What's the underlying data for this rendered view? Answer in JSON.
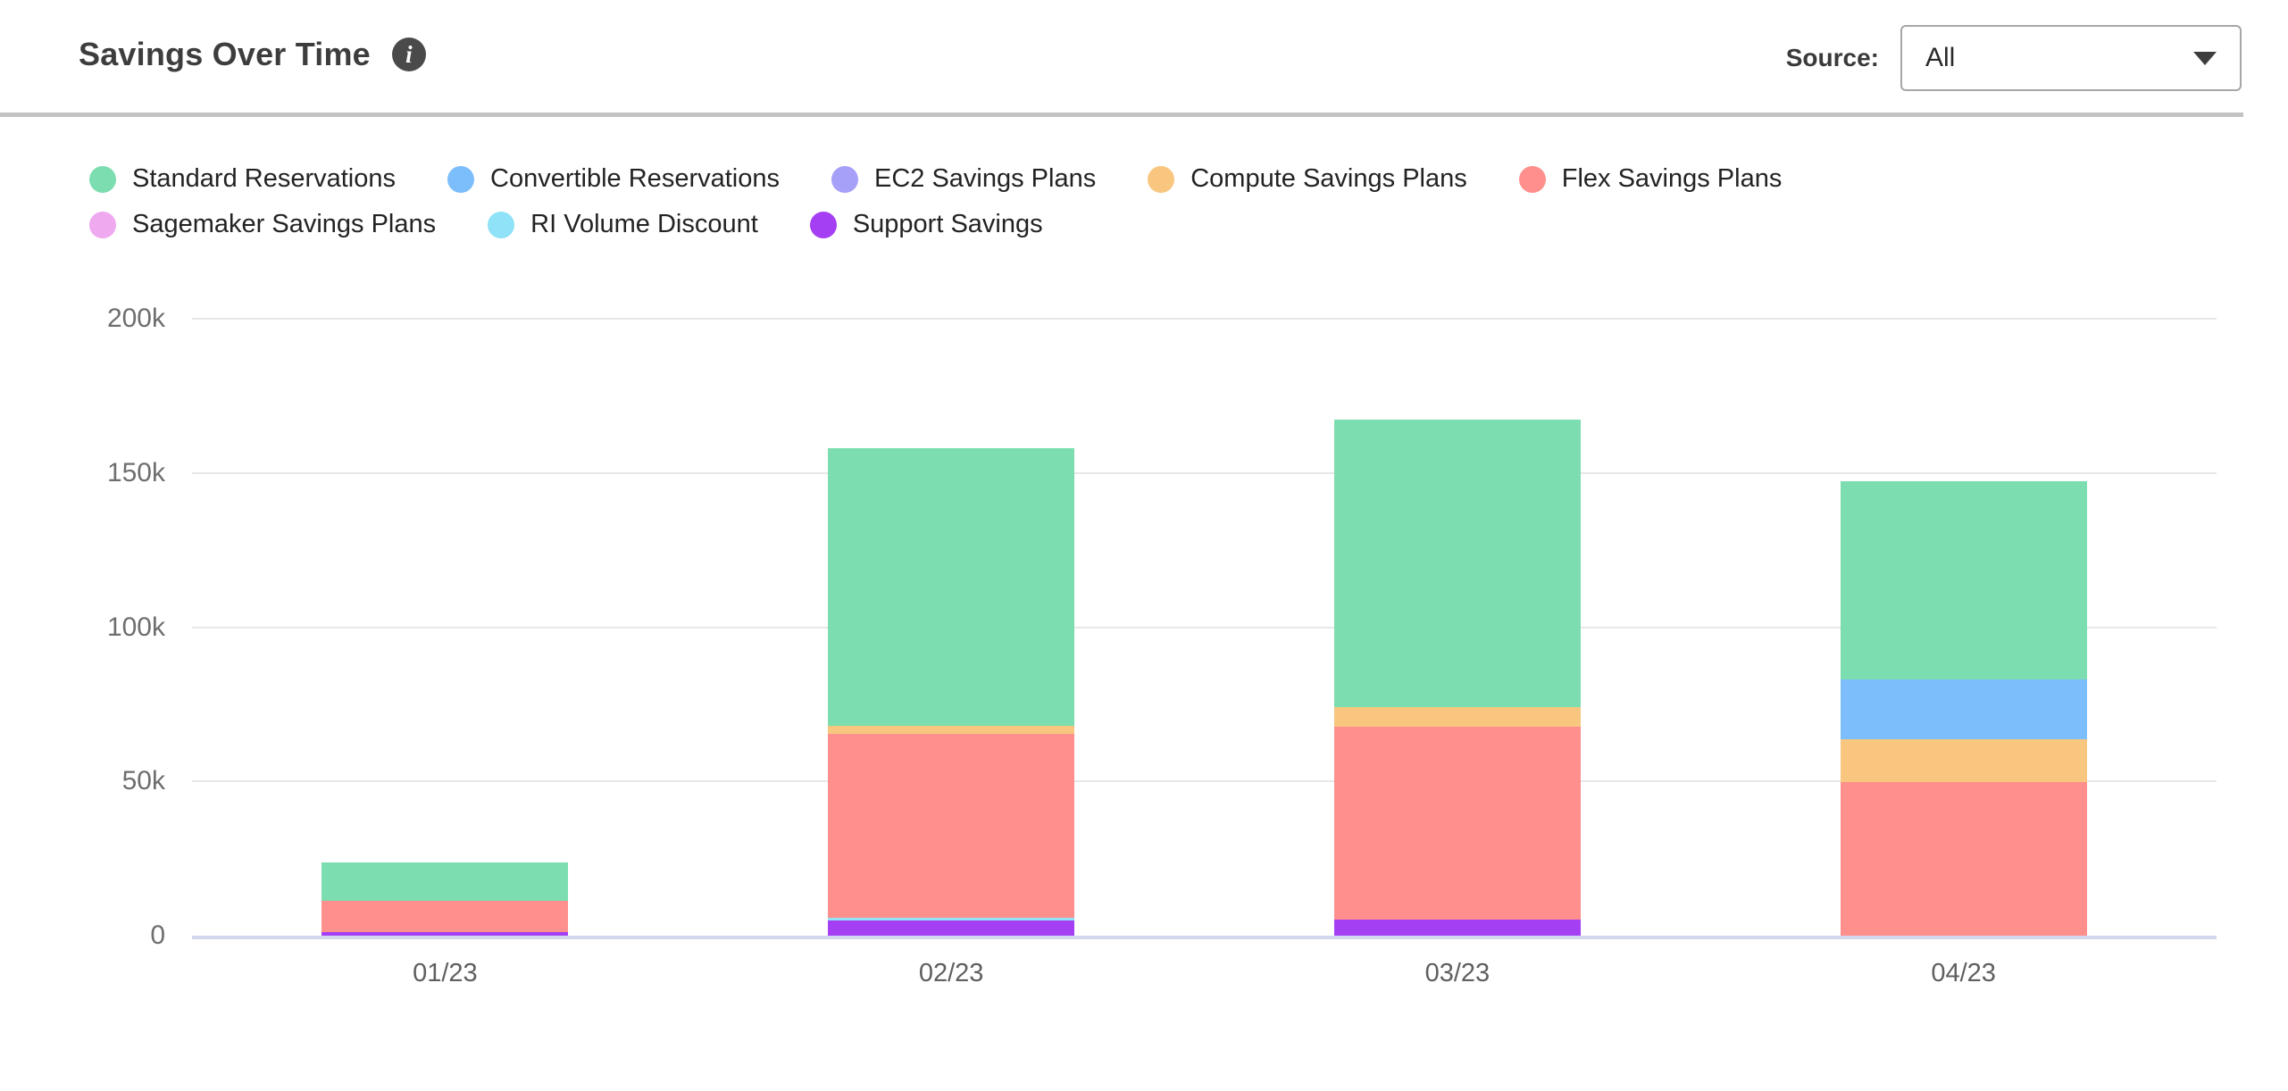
{
  "header": {
    "title": "Savings Over Time",
    "info_icon": "info-icon",
    "source_label": "Source:",
    "source_value": "All",
    "chevron_icon": "chevron-down-icon"
  },
  "chart_data": {
    "type": "bar",
    "stacked": true,
    "title": "Savings Over Time",
    "xlabel": "",
    "ylabel": "",
    "categories": [
      "01/23",
      "02/23",
      "03/23",
      "04/23"
    ],
    "series": [
      {
        "name": "Standard Reservations",
        "color": "#7CDEB0",
        "values": [
          12300,
          90100,
          93200,
          64200
        ]
      },
      {
        "name": "Convertible Reservations",
        "color": "#7CBDFB",
        "values": [
          0,
          0,
          0,
          19500
        ]
      },
      {
        "name": "EC2 Savings Plans",
        "color": "#A6A0F8",
        "values": [
          0,
          0,
          0,
          0
        ]
      },
      {
        "name": "Compute Savings Plans",
        "color": "#F8C67F",
        "values": [
          0,
          2600,
          6500,
          13700
        ]
      },
      {
        "name": "Flex Savings Plans",
        "color": "#FE8F8C",
        "values": [
          10200,
          59600,
          62400,
          49900
        ]
      },
      {
        "name": "Sagemaker Savings Plans",
        "color": "#EFA9EF",
        "values": [
          0,
          0,
          0,
          0
        ]
      },
      {
        "name": "RI Volume Discount",
        "color": "#8FE2F7",
        "values": [
          0,
          950,
          0,
          0
        ]
      },
      {
        "name": "Support Savings",
        "color": "#A43FF3",
        "values": [
          1200,
          4800,
          5300,
          0
        ]
      }
    ],
    "stack_order": "reverse-legend (last legend entry at bottom of stack)",
    "ylim": [
      0,
      200000
    ],
    "yticks": [
      {
        "value": 200000,
        "label": "200k"
      },
      {
        "value": 150000,
        "label": "150k"
      },
      {
        "value": 100000,
        "label": "100k"
      },
      {
        "value": 50000,
        "label": "50k"
      },
      {
        "value": 0,
        "label": "0"
      }
    ],
    "grid": "horizontal",
    "legend_position": "top-left, two rows",
    "colors": {
      "axis_line": "#d3d7ed",
      "gridline": "#e7e7e7",
      "tick_text": "#6e6e6e"
    }
  }
}
